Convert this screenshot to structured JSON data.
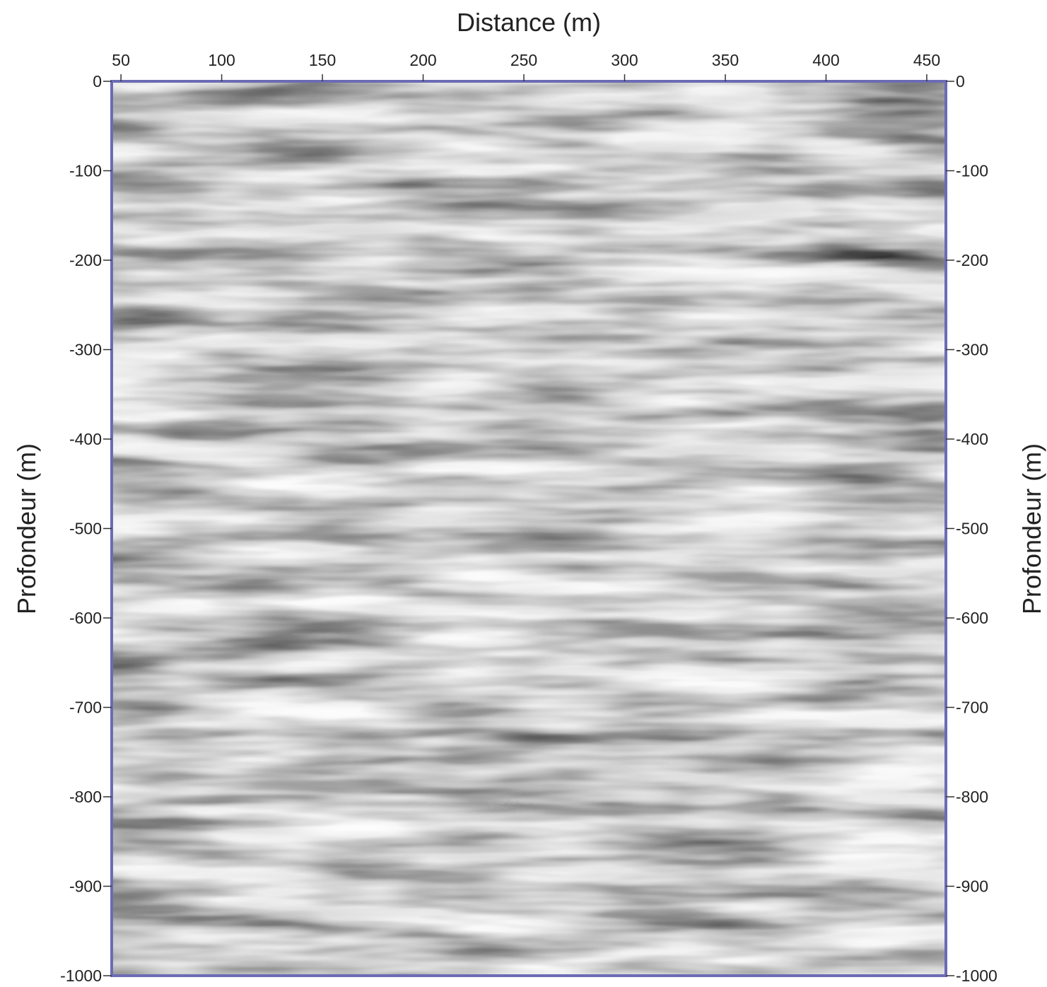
{
  "chart_data": {
    "type": "section",
    "x_label": "Distance (m)",
    "y_label": "Profondeur (m)",
    "xlim": [
      45.4,
      459.5
    ],
    "xticks": [
      50,
      100,
      150,
      200,
      250,
      300,
      350,
      400,
      450
    ],
    "ylim": [
      -1000,
      0
    ],
    "yticks": [
      0,
      -100,
      -200,
      -300,
      -400,
      -500,
      -600,
      -700,
      -800,
      -900,
      -1000
    ],
    "frame_color": "#6b6bb5"
  }
}
